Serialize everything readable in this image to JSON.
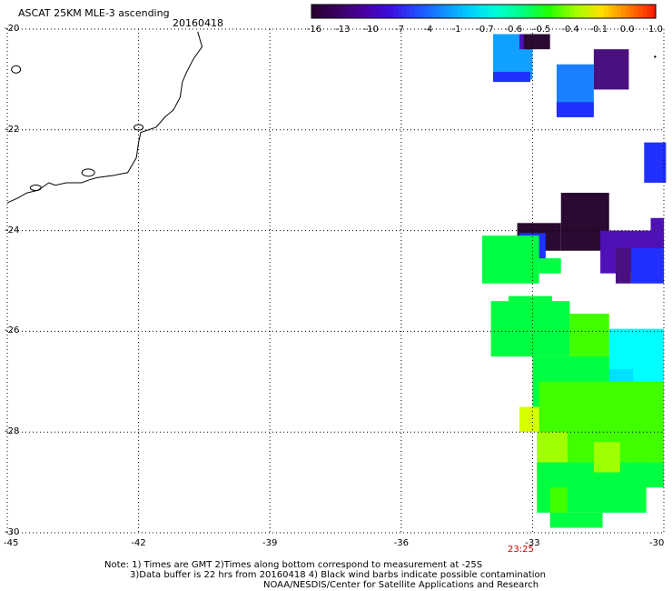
{
  "header": {
    "title": "ASCAT 25KM MLE-3 ascending",
    "date": "20160418"
  },
  "colorbar": {
    "labels": [
      "-16",
      "-13",
      "-10",
      "-7",
      "-4",
      "-1",
      "-0.7",
      "-0.6",
      "-0.5",
      "-0.4",
      "-0.1",
      "0.0",
      "1.0"
    ],
    "colors": [
      "#2a0033",
      "#3d0066",
      "#4b00a8",
      "#3a10e0",
      "#2050ff",
      "#1090ff",
      "#00d0ff",
      "#00ffd8",
      "#00ff80",
      "#20ff00",
      "#a0ff00",
      "#ffe000",
      "#ff8000",
      "#ff2000"
    ]
  },
  "map": {
    "lat_ticks": [
      "-20",
      "-22",
      "-24",
      "-26",
      "-28",
      "-30"
    ],
    "lon_ticks": [
      "-45",
      "-42",
      "-39",
      "-36",
      "-33",
      "-30"
    ],
    "time_label": "23:25",
    "palette": {
      "darkpurple": "#2a0a30",
      "purple": "#4a1080",
      "indigo": "#5010b8",
      "blue": "#2030ff",
      "lightblue": "#1a80ff",
      "skyblue": "#10a0ff",
      "cyan": "#00ffff",
      "aqua": "#00e0ff",
      "green": "#00ff40",
      "lime": "#40ff00",
      "yellowgreen": "#a0ff00",
      "yellow": "#d8ff00"
    }
  },
  "notes": {
    "line1": "Note: 1) Times are GMT 2)Times along bottom correspond to measurement at -25S",
    "line2": "3)Data buffer is 22 hrs from 20160418 4) Black wind barbs indicate possible contamination",
    "line3": "NOAA/NESDIS/Center for Satellite Applications and Research"
  }
}
